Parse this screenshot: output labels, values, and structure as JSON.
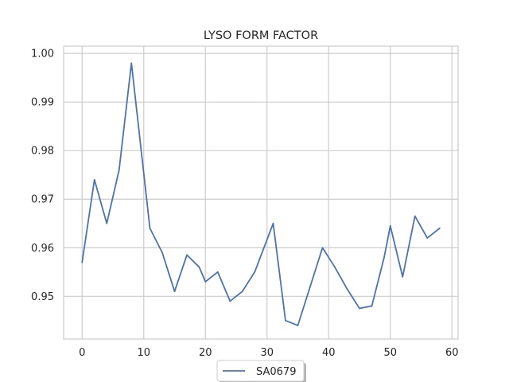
{
  "chart_data": {
    "type": "line",
    "title": "LYSO FORM FACTOR",
    "xlabel": "",
    "ylabel": "",
    "xlim": [
      -3,
      61
    ],
    "ylim": [
      0.9412,
      1.0015
    ],
    "xticks": [
      0,
      10,
      20,
      30,
      40,
      50,
      60
    ],
    "yticks": [
      0.95,
      0.96,
      0.97,
      0.98,
      0.99,
      1.0
    ],
    "ytick_labels": [
      "0.95",
      "0.96",
      "0.97",
      "0.98",
      "0.99",
      "1.00"
    ],
    "grid": true,
    "legend_position": "bottom-center",
    "series": [
      {
        "name": "SA0679",
        "color": "#4c72b0",
        "x": [
          0,
          2,
          4,
          6,
          8,
          11,
          13,
          15,
          17,
          19,
          20,
          22,
          24,
          26,
          28,
          31,
          33,
          35,
          37,
          39,
          41,
          43,
          45,
          47,
          49,
          50,
          52,
          54,
          56,
          58
        ],
        "y": [
          0.957,
          0.974,
          0.965,
          0.976,
          0.998,
          0.964,
          0.959,
          0.951,
          0.9585,
          0.956,
          0.953,
          0.955,
          0.949,
          0.951,
          0.955,
          0.965,
          0.945,
          0.944,
          0.952,
          0.96,
          0.956,
          0.9515,
          0.9475,
          0.948,
          0.958,
          0.9645,
          0.954,
          0.9665,
          0.962,
          0.964
        ]
      }
    ]
  }
}
